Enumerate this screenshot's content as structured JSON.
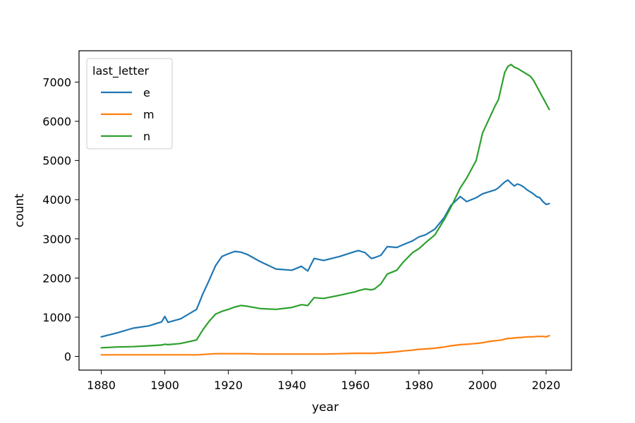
{
  "chart_data": {
    "type": "line",
    "title": "",
    "xlabel": "year",
    "ylabel": "count",
    "xlim": [
      1873,
      2028
    ],
    "ylim": [
      -350,
      7800
    ],
    "xticks": [
      1880,
      1900,
      1920,
      1940,
      1960,
      1980,
      2000,
      2020
    ],
    "yticks": [
      0,
      1000,
      2000,
      3000,
      4000,
      5000,
      6000,
      7000
    ],
    "grid": false,
    "legend": {
      "title": "last_letter",
      "placement": "top-left"
    },
    "x": [
      1880,
      1885,
      1890,
      1895,
      1899,
      1900,
      1901,
      1905,
      1910,
      1912,
      1914,
      1916,
      1918,
      1920,
      1922,
      1924,
      1926,
      1930,
      1935,
      1940,
      1943,
      1945,
      1947,
      1950,
      1955,
      1960,
      1961,
      1963,
      1965,
      1966,
      1968,
      1970,
      1973,
      1975,
      1978,
      1980,
      1982,
      1985,
      1988,
      1990,
      1993,
      1995,
      1998,
      2000,
      2002,
      2004,
      2005,
      2006,
      2007,
      2008,
      2009,
      2010,
      2011,
      2012,
      2013,
      2014,
      2015,
      2016,
      2017,
      2018,
      2019,
      2020,
      2021
    ],
    "series": [
      {
        "name": "e",
        "color": "#1f77b4",
        "values": [
          500,
          600,
          720,
          780,
          880,
          1020,
          870,
          960,
          1200,
          1600,
          1950,
          2320,
          2550,
          2620,
          2680,
          2660,
          2600,
          2420,
          2230,
          2200,
          2300,
          2180,
          2500,
          2450,
          2550,
          2680,
          2700,
          2650,
          2500,
          2520,
          2580,
          2800,
          2780,
          2850,
          2950,
          3050,
          3100,
          3250,
          3550,
          3850,
          4080,
          3950,
          4050,
          4150,
          4200,
          4250,
          4300,
          4380,
          4450,
          4500,
          4420,
          4350,
          4400,
          4370,
          4320,
          4250,
          4200,
          4150,
          4080,
          4050,
          3950,
          3880,
          3900
        ]
      },
      {
        "name": "m",
        "color": "#ff7f0e",
        "values": [
          40,
          40,
          40,
          40,
          40,
          40,
          40,
          40,
          40,
          50,
          60,
          70,
          70,
          70,
          70,
          70,
          70,
          60,
          60,
          60,
          60,
          60,
          60,
          60,
          70,
          80,
          80,
          80,
          80,
          80,
          90,
          100,
          120,
          140,
          160,
          180,
          190,
          210,
          240,
          270,
          300,
          310,
          330,
          350,
          380,
          400,
          410,
          420,
          440,
          460,
          460,
          470,
          480,
          480,
          490,
          500,
          500,
          500,
          510,
          510,
          510,
          500,
          530
        ]
      },
      {
        "name": "n",
        "color": "#2ca02c",
        "values": [
          220,
          240,
          250,
          270,
          290,
          310,
          300,
          330,
          420,
          680,
          900,
          1080,
          1150,
          1200,
          1260,
          1300,
          1280,
          1220,
          1200,
          1250,
          1320,
          1300,
          1500,
          1480,
          1560,
          1650,
          1680,
          1720,
          1700,
          1720,
          1850,
          2100,
          2200,
          2400,
          2650,
          2750,
          2900,
          3100,
          3500,
          3800,
          4300,
          4550,
          5000,
          5700,
          6050,
          6400,
          6550,
          6900,
          7250,
          7400,
          7450,
          7380,
          7350,
          7300,
          7250,
          7200,
          7150,
          7050,
          6900,
          6750,
          6600,
          6450,
          6300
        ]
      }
    ]
  }
}
